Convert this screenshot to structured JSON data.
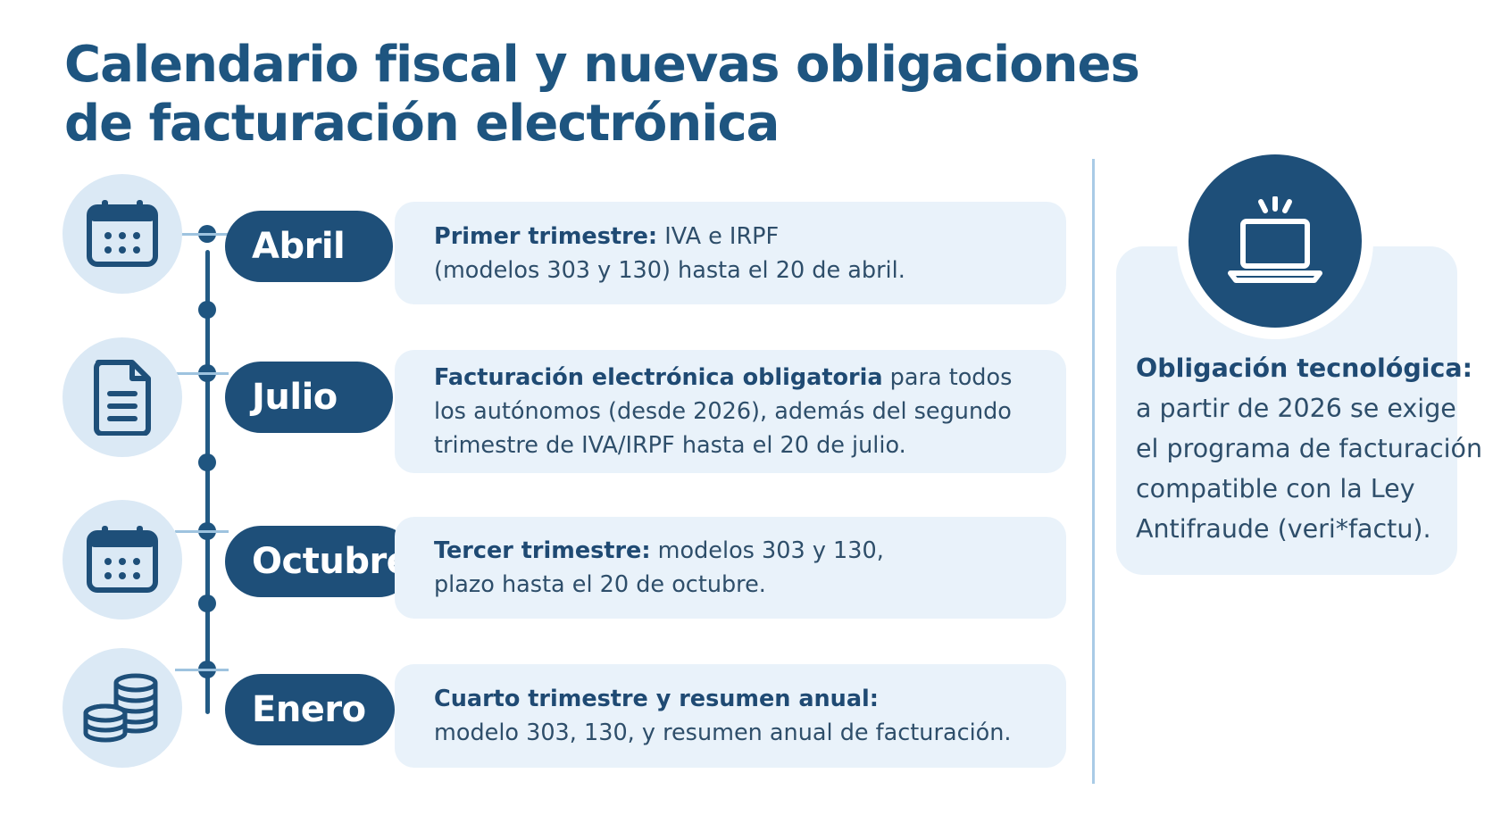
{
  "title": {
    "line1": "Calendario fiscal y nuevas obligaciones",
    "line2": "de facturación electrónica"
  },
  "timeline": [
    {
      "month": "Abril",
      "icon": "calendar-icon",
      "bold": "Primer trimestre:",
      "lines": [
        " IVA e IRPF",
        "(modelos 303 y 130) hasta el 20 de abril."
      ]
    },
    {
      "month": "Julio",
      "icon": "document-icon",
      "bold": "Facturación electrónica obligatoria",
      "lines": [
        " para todos",
        "los autónomos (desde 2026), además del segundo",
        "trimestre de IVA/IRPF hasta el 20 de julio."
      ]
    },
    {
      "month": "Octubre",
      "icon": "calendar-icon",
      "bold": "Tercer trimestre:",
      "lines": [
        " modelos 303 y 130,",
        "plazo hasta el 20 de octubre."
      ]
    },
    {
      "month": "Enero",
      "icon": "coins-icon",
      "bold": "Cuarto trimestre y resumen anual:",
      "lines": [
        "",
        "modelo 303, 130, y resumen anual de facturación."
      ]
    }
  ],
  "side": {
    "icon": "laptop-icon",
    "bold": "Obligación tecnológica:",
    "lines": [
      "a partir de 2026 se exige",
      "el programa de facturación",
      "compatible con la Ley",
      "Antifraude (veri*factu)."
    ]
  },
  "colors": {
    "primary": "#1e4f79",
    "title": "#1e5580",
    "card_bg": "#e9f2fa",
    "icon_bg": "#dbe9f5",
    "divider": "#a9cbe6"
  }
}
